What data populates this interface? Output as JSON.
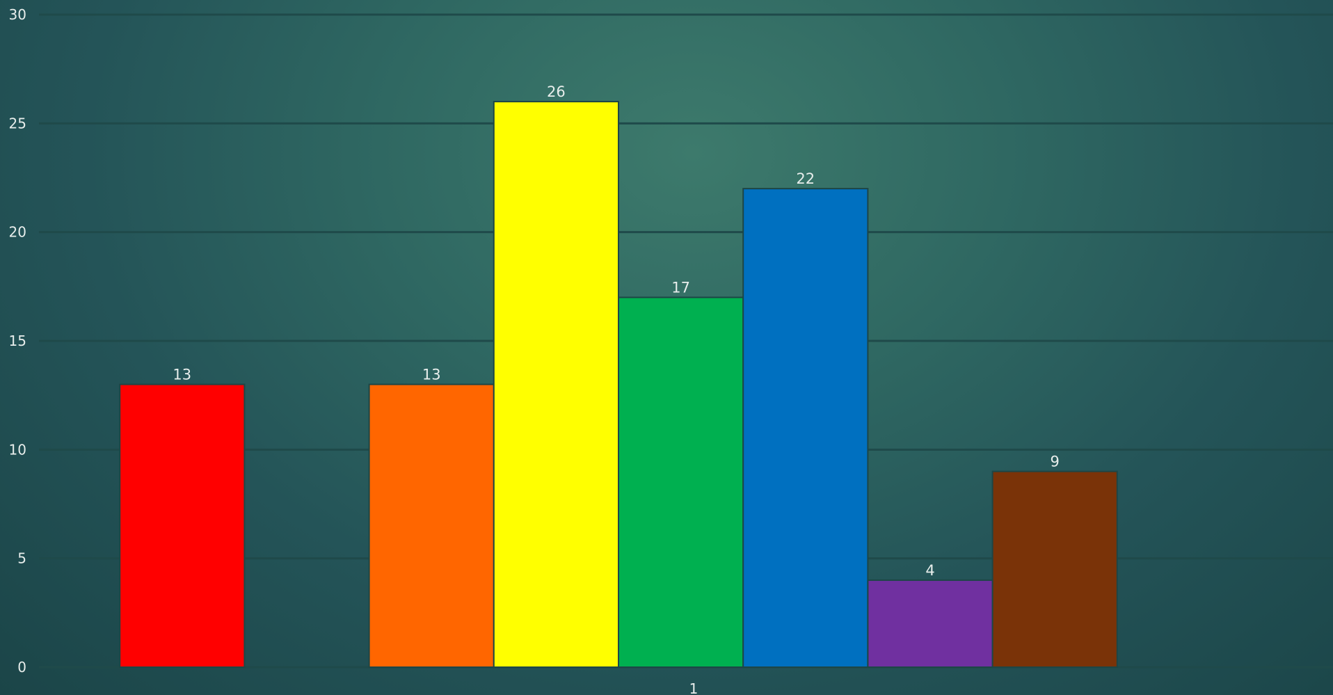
{
  "chart_data": {
    "type": "bar",
    "categories": [
      "1"
    ],
    "series": [
      {
        "values": [
          13
        ],
        "color": "#ff0000"
      },
      {
        "values": [
          0
        ],
        "color": "#ffffff"
      },
      {
        "values": [
          13
        ],
        "color": "#ff6600"
      },
      {
        "values": [
          26
        ],
        "color": "#ffff00"
      },
      {
        "values": [
          17
        ],
        "color": "#00b050"
      },
      {
        "values": [
          22
        ],
        "color": "#0070c0"
      },
      {
        "values": [
          4
        ],
        "color": "#7030a0"
      },
      {
        "values": [
          9
        ],
        "color": "#7a3308"
      }
    ],
    "data_labels": [
      "13",
      "",
      "13",
      "26",
      "17",
      "22",
      "4",
      "9"
    ],
    "ylim": [
      0,
      30
    ],
    "yticks": [
      0,
      5,
      10,
      15,
      20,
      25,
      30
    ],
    "grid": true,
    "title": "",
    "xlabel": "",
    "ylabel": ""
  }
}
